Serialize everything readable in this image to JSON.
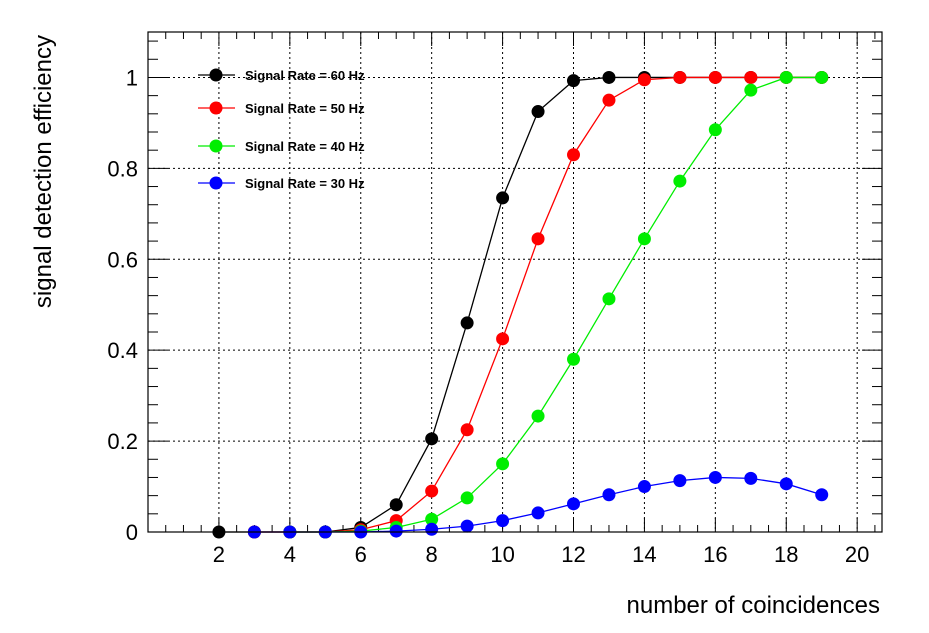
{
  "chart_data": {
    "type": "line",
    "title": "",
    "xlabel": "number of coincidences",
    "ylabel": "signal detection efficiency",
    "xlim": [
      0,
      20.7
    ],
    "ylim": [
      0,
      1.1
    ],
    "xticks": [
      2,
      4,
      6,
      8,
      10,
      12,
      14,
      16,
      18,
      20
    ],
    "yticks": [
      0,
      0.2,
      0.4,
      0.6,
      0.8,
      1
    ],
    "ytick_labels": [
      "0",
      "0.2",
      "0.4",
      "0.6",
      "0.8",
      "1"
    ],
    "grid": true,
    "legend_position": "top-left",
    "series": [
      {
        "name": "Signal Rate = 60 Hz",
        "color": "#000000",
        "x": [
          2,
          3,
          4,
          5,
          6,
          7,
          8,
          9,
          10,
          11,
          12,
          13,
          14,
          15,
          16,
          17,
          18,
          19
        ],
        "values": [
          0.0,
          0.0,
          0.0,
          0.0,
          0.01,
          0.06,
          0.205,
          0.46,
          0.735,
          0.925,
          0.993,
          1.0,
          1.0,
          1.0,
          1.0,
          1.0,
          1.0,
          1.0
        ]
      },
      {
        "name": "Signal Rate = 50 Hz",
        "color": "#ff0000",
        "x": [
          3,
          4,
          5,
          6,
          7,
          8,
          9,
          10,
          11,
          12,
          13,
          14,
          15,
          16,
          17,
          18,
          19
        ],
        "values": [
          0.0,
          0.0,
          0.0,
          0.005,
          0.025,
          0.09,
          0.225,
          0.425,
          0.645,
          0.83,
          0.95,
          0.995,
          1.0,
          1.0,
          1.0,
          1.0,
          1.0
        ]
      },
      {
        "name": "Signal Rate = 40 Hz",
        "color": "#00ee00",
        "x": [
          4,
          5,
          6,
          7,
          8,
          9,
          10,
          11,
          12,
          13,
          14,
          15,
          16,
          17,
          18,
          19
        ],
        "values": [
          0.0,
          0.0,
          0.002,
          0.01,
          0.028,
          0.075,
          0.15,
          0.255,
          0.38,
          0.513,
          0.645,
          0.772,
          0.885,
          0.972,
          1.0,
          1.0
        ]
      },
      {
        "name": "Signal Rate = 30 Hz",
        "color": "#0000ff",
        "x": [
          3,
          4,
          5,
          6,
          7,
          8,
          9,
          10,
          11,
          12,
          13,
          14,
          15,
          16,
          17,
          18,
          19
        ],
        "values": [
          0.0,
          0.0,
          0.0,
          0.0,
          0.002,
          0.006,
          0.013,
          0.025,
          0.042,
          0.062,
          0.082,
          0.1,
          0.113,
          0.12,
          0.118,
          0.106,
          0.082
        ]
      }
    ]
  }
}
